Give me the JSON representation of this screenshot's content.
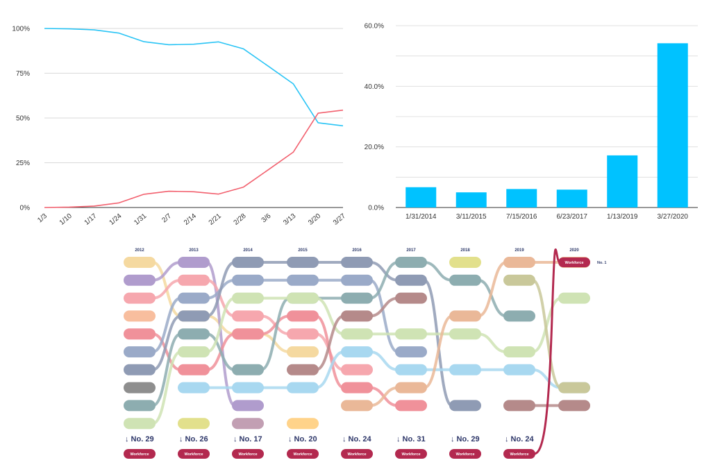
{
  "chart_data": [
    {
      "type": "line",
      "x": [
        "1/3",
        "1/10",
        "1/17",
        "1/24",
        "1/31",
        "2/7",
        "2/14",
        "2/21",
        "2/28",
        "3/6",
        "3/13",
        "3/20",
        "3/27"
      ],
      "ylim": [
        0,
        100
      ],
      "yticks": [
        "0%",
        "25%",
        "50%",
        "75%",
        "100%"
      ],
      "grid": true,
      "series": [
        {
          "color": "#29c4f5",
          "values": [
            100,
            99.8,
            99.2,
            97.4,
            92.6,
            90.9,
            91.2,
            92.5,
            88.6,
            78.9,
            69.1,
            47.3,
            45.6
          ]
        },
        {
          "color": "#f2606e",
          "values": [
            0,
            0.2,
            0.8,
            2.6,
            7.4,
            9.1,
            8.8,
            7.5,
            11.4,
            21.1,
            30.9,
            52.7,
            54.4
          ]
        }
      ]
    },
    {
      "type": "bar",
      "categories": [
        "1/31/2014",
        "3/11/2015",
        "7/15/2016",
        "6/23/2017",
        "1/13/2019",
        "3/27/2020"
      ],
      "values": [
        6.7,
        5.0,
        6.1,
        5.9,
        17.2,
        54.2
      ],
      "ylim": [
        0,
        60
      ],
      "yticks": [
        "0.0%",
        "20.0%",
        "40.0%",
        "60.0%"
      ],
      "color": "#00c2ff",
      "grid": true
    },
    {
      "type": "bump",
      "years": [
        "2012",
        "2013",
        "2014",
        "2015",
        "2016",
        "2017",
        "2018",
        "2019",
        "2020"
      ],
      "total_rows": 10,
      "workforce_color": "#b3294f",
      "workforce_label": "Workforce",
      "workforce_ranks": [
        "↓ No. 29",
        "↓ No. 26",
        "↓ No. 17",
        "↓ No. 20",
        "↓ No. 24",
        "↓ No. 31",
        "↓ No. 29",
        "↓ No. 24"
      ],
      "workforce_top_rank": 1,
      "workforce_top_label": "No. 1",
      "categories": [
        {
          "color": "#f5d9a0",
          "ranks": [
            1,
            4,
            5,
            6,
            null,
            null,
            null,
            null,
            null
          ]
        },
        {
          "color": "#b09ccd",
          "ranks": [
            2,
            1,
            9,
            null,
            null,
            null,
            null,
            null,
            null
          ]
        },
        {
          "color": "#f6a7ae",
          "ranks": [
            3,
            2,
            4,
            5,
            7,
            null,
            null,
            null,
            null
          ]
        },
        {
          "color": "#f8be9e",
          "ranks": [
            4,
            null,
            null,
            null,
            null,
            null,
            null,
            null,
            null
          ]
        },
        {
          "color": "#f0919a",
          "ranks": [
            5,
            7,
            5,
            4,
            8,
            9,
            null,
            null,
            null
          ]
        },
        {
          "color": "#9aaac8",
          "ranks": [
            6,
            3,
            2,
            2,
            2,
            6,
            null,
            null,
            null
          ]
        },
        {
          "color": "#8f9bb4",
          "ranks": [
            7,
            4,
            1,
            1,
            1,
            2,
            9,
            null,
            null
          ]
        },
        {
          "color": "#8e8e8e",
          "ranks": [
            8,
            null,
            null,
            null,
            null,
            null,
            null,
            null,
            null
          ]
        },
        {
          "color": "#8dadb0",
          "ranks": [
            9,
            5,
            7,
            3,
            3,
            1,
            2,
            4,
            null
          ]
        },
        {
          "color": "#cfe3b4",
          "ranks": [
            10,
            6,
            3,
            3,
            5,
            5,
            5,
            6,
            3
          ]
        },
        {
          "color": "#e2e08c",
          "ranks": [
            null,
            10,
            null,
            null,
            null,
            null,
            1,
            null,
            null
          ]
        },
        {
          "color": "#a8d8f0",
          "ranks": [
            null,
            8,
            8,
            8,
            6,
            7,
            7,
            7,
            8
          ]
        },
        {
          "color": "#c29fb3",
          "ranks": [
            null,
            null,
            10,
            null,
            null,
            null,
            null,
            null,
            null
          ]
        },
        {
          "color": "#ffd38a",
          "ranks": [
            null,
            null,
            null,
            10,
            null,
            null,
            null,
            null,
            null
          ]
        },
        {
          "color": "#b58a8a",
          "ranks": [
            null,
            null,
            null,
            7,
            4,
            3,
            null,
            9,
            9
          ]
        },
        {
          "color": "#eab898",
          "ranks": [
            null,
            null,
            null,
            null,
            9,
            8,
            4,
            1,
            1
          ]
        },
        {
          "color": "#c9c89a",
          "ranks": [
            null,
            null,
            null,
            null,
            null,
            null,
            null,
            2,
            8
          ]
        }
      ]
    }
  ]
}
